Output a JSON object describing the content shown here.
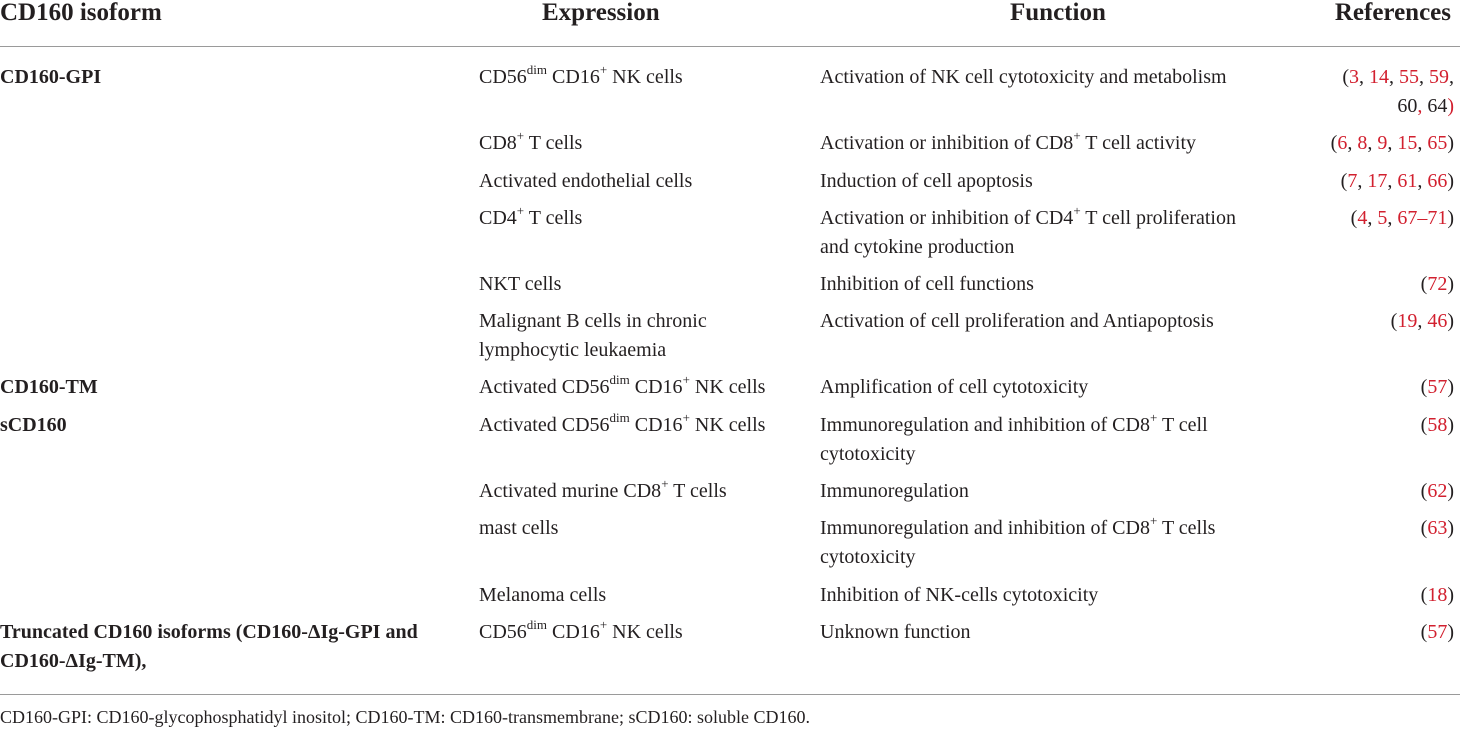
{
  "header": {
    "isoform": "CD160 isoform",
    "expression": "Expression",
    "function": "Function",
    "references": "References"
  },
  "rows": [
    {
      "isoform": "CD160-GPI",
      "expression": [
        [
          "CD56",
          "dim",
          " CD16",
          "+",
          " NK cells"
        ]
      ],
      "function": [
        "Activation of NK cell cytotoxicity and metabolism"
      ],
      "refs": [
        [
          "(",
          "3",
          ", ",
          "14",
          ", ",
          "55",
          ", ",
          "59",
          ","
        ],
        [
          "60",
          ", ",
          "64",
          ")"
        ]
      ]
    },
    {
      "isoform": "",
      "expression": [
        [
          "CD8",
          "+",
          " T cells"
        ]
      ],
      "function": [
        [
          "Activation or inhibition of CD8",
          "+",
          " T cell activity"
        ]
      ],
      "refs": [
        [
          "(",
          "6",
          ", ",
          "8",
          ", ",
          "9",
          ", ",
          "15",
          ", ",
          "65",
          ")"
        ]
      ]
    },
    {
      "isoform": "",
      "expression": [
        "Activated endothelial cells"
      ],
      "function": [
        "Induction of cell apoptosis"
      ],
      "refs": [
        [
          "(",
          "7",
          ", ",
          "17",
          ", ",
          "61",
          ", ",
          "66",
          ")"
        ]
      ]
    },
    {
      "isoform": "",
      "expression": [
        [
          "CD4",
          "+",
          " T cells"
        ]
      ],
      "function": [
        [
          "Activation or inhibition of CD4",
          "+",
          " T cell proliferation"
        ],
        "and cytokine production"
      ],
      "refs": [
        [
          "(",
          "4",
          ", ",
          "5",
          ", ",
          "67–71",
          ")"
        ]
      ]
    },
    {
      "isoform": "",
      "expression": [
        "NKT cells"
      ],
      "function": [
        "Inhibition of cell functions"
      ],
      "refs": [
        [
          "(",
          "72",
          ")"
        ]
      ]
    },
    {
      "isoform": "",
      "expression": [
        "Malignant B cells in chronic",
        "lymphocytic leukaemia"
      ],
      "function": [
        "Activation of cell proliferation and Antiapoptosis"
      ],
      "refs": [
        [
          "(",
          "19",
          ", ",
          "46",
          ")"
        ]
      ]
    },
    {
      "isoform": "CD160-TM",
      "expression": [
        [
          "Activated CD56",
          "dim",
          " CD16",
          "+",
          " NK cells"
        ]
      ],
      "function": [
        "Amplification of cell cytotoxicity"
      ],
      "refs": [
        [
          "(",
          "57",
          ")"
        ]
      ]
    },
    {
      "isoform": "sCD160",
      "expression": [
        [
          "Activated CD56",
          "dim",
          " CD16",
          "+",
          " NK cells"
        ]
      ],
      "function": [
        [
          "Immunoregulation and inhibition of CD8",
          "+",
          " T cell"
        ],
        "cytotoxicity"
      ],
      "refs": [
        [
          "(",
          "58",
          ")"
        ]
      ]
    },
    {
      "isoform": "",
      "expression": [
        [
          "Activated murine CD8",
          "+",
          " T cells"
        ]
      ],
      "function": [
        "Immunoregulation"
      ],
      "refs": [
        [
          "(",
          "62",
          ")"
        ]
      ]
    },
    {
      "isoform": "",
      "expression": [
        "mast cells"
      ],
      "function": [
        [
          "Immunoregulation and inhibition of CD8",
          "+",
          " T cells"
        ],
        "cytotoxicity"
      ],
      "refs": [
        [
          "(",
          "63",
          ")"
        ]
      ]
    },
    {
      "isoform": "",
      "expression": [
        "Melanoma cells"
      ],
      "function": [
        "Inhibition of NK-cells cytotoxicity"
      ],
      "refs": [
        [
          "(",
          "18",
          ")"
        ]
      ]
    },
    {
      "isoform": [
        "Truncated CD160 isoforms (CD160-ΔIg-GPI and",
        "CD160-ΔIg-TM),"
      ],
      "expression": [
        [
          "CD56",
          "dim",
          " CD16",
          "+",
          " NK cells"
        ]
      ],
      "function": [
        "Unknown function"
      ],
      "refs": [
        [
          "(",
          "57",
          ")"
        ]
      ]
    }
  ],
  "footnote": "CD160-GPI: CD160-glycophosphatidyl inositol; CD160-TM: CD160-transmembrane; sCD160: soluble CD160.",
  "colors": {
    "text": "#231f20",
    "link": "#d2202f",
    "rule": "#9a9a9a"
  }
}
